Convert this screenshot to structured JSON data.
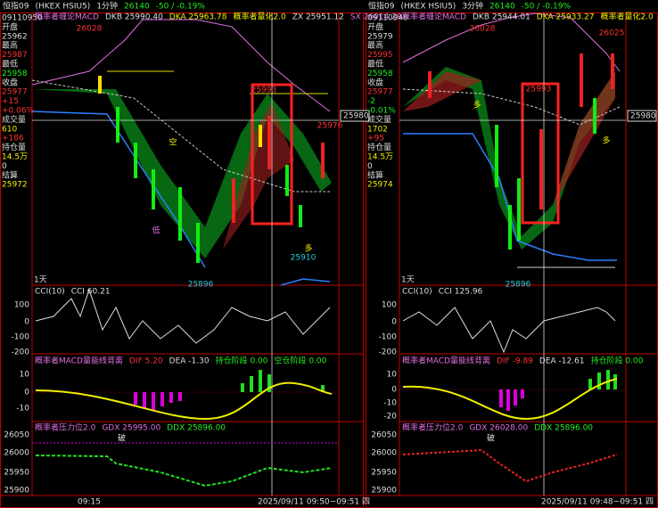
{
  "panels": [
    {
      "top": [
        "恒指09",
        "(HKEX HSIU5)",
        "1分钟",
        "26140",
        "-50 / -0.19%"
      ],
      "info": [
        "09110950",
        "开盘",
        "25962",
        "最高",
        "25987",
        "最低",
        "25958",
        "收盘",
        "25977",
        "+15",
        "+0.06%",
        "成交量",
        "610",
        "+186",
        "持仓量",
        "14.5万",
        "0",
        "结算",
        "25972"
      ],
      "main_header": [
        "概率者缠论MACD",
        "DKB 25990.40",
        "DKA 25963.78",
        "概率者量化2.0",
        "ZX 25951.12",
        "SX 26014.29"
      ],
      "price_labels": [
        "26028",
        "25993",
        "25976",
        "25910",
        "25896"
      ],
      "axis_price": "25980",
      "signals": [
        "多",
        "空",
        "低"
      ],
      "period": "1天",
      "cci": {
        "header": [
          "CCI(10)",
          "CCI 60.21"
        ],
        "ticks": [
          "100",
          "0",
          "-100",
          "-200"
        ]
      },
      "macd": {
        "header": [
          "概率者MACD量能线背离",
          "DIF 5.20",
          "DEA -1.30",
          "持仓阶段 0.00",
          "空仓阶段 0.00"
        ],
        "ticks": [
          "10",
          "0",
          "-10"
        ]
      },
      "pressure": {
        "header": [
          "概率者压力位2.0",
          "GDX 25995.00",
          "DDX 25896.00"
        ],
        "mark": "破",
        "ticks": [
          "26050",
          "26000",
          "25950",
          "25900"
        ]
      },
      "time_axis": [
        "09:15",
        "2025/09/11 09:50~09:51 四"
      ]
    },
    {
      "top": [
        "恒指09",
        "(HKEX HSIU5)",
        "3分钟",
        "26140",
        "-50 / -0.19%"
      ],
      "info": [
        "09110948",
        "开盘",
        "25979",
        "最高",
        "25995",
        "最低",
        "25958",
        "收盘",
        "25977",
        "-2",
        "-0.01%",
        "成交量",
        "1702",
        "+95",
        "持仓量",
        "14.5万",
        "0",
        "结算",
        "25974"
      ],
      "main_header": [
        "概率者缠论MACD",
        "DKB 25944.01",
        "DKA 25933.27",
        "概率者量化2.0"
      ],
      "price_labels": [
        "26028",
        "26025",
        "25993",
        "25896"
      ],
      "axis_price": "25980",
      "signals": [
        "多",
        "多"
      ],
      "period": "1天",
      "cci": {
        "header": [
          "CCI(10)",
          "CCI 125.96"
        ],
        "ticks": [
          "100",
          "0",
          "-100",
          "-200"
        ]
      },
      "macd": {
        "header": [
          "概率者MACD量能线背离",
          "DIF -9.89",
          "DEA -12.61",
          "持仓阶段 0.00"
        ],
        "ticks": [
          "10",
          "0",
          "-10",
          "-20"
        ]
      },
      "pressure": {
        "header": [
          "概率者压力位2.0",
          "GDX 26028.00",
          "DDX 25896.00"
        ],
        "mark": "破",
        "ticks": [
          "26050",
          "26000",
          "25950",
          "25900"
        ]
      },
      "time_axis": [
        "2025/09/11 09:48~09:51 四"
      ]
    }
  ]
}
